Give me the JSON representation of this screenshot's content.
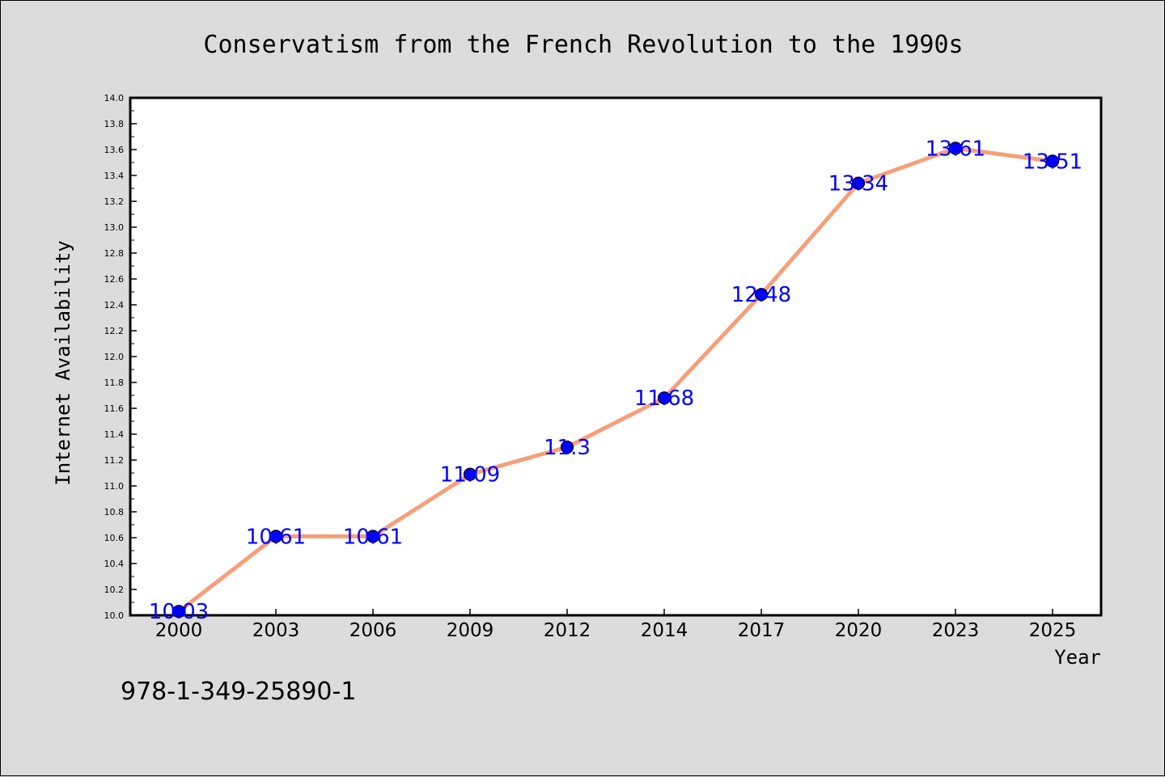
{
  "chart_data": {
    "type": "line",
    "title": "Conservatism from the French Revolution to the 1990s",
    "xlabel": "Year",
    "ylabel": "Internet Availability",
    "categories": [
      "2000",
      "2003",
      "2006",
      "2009",
      "2012",
      "2014",
      "2017",
      "2020",
      "2023",
      "2025"
    ],
    "values": [
      10.03,
      10.61,
      10.61,
      11.09,
      11.3,
      11.68,
      12.48,
      13.34,
      13.61,
      13.51
    ],
    "data_labels": [
      "10.03",
      "10.61",
      "10.61",
      "11.09",
      "11.3",
      "11.68",
      "12.48",
      "13.34",
      "13.61",
      "13.51"
    ],
    "ylim": [
      10.0,
      14.0
    ],
    "yticks": [
      "10.0",
      "10.2",
      "10.4",
      "10.6",
      "10.8",
      "11.0",
      "11.2",
      "11.4",
      "11.6",
      "11.8",
      "12.0",
      "12.2",
      "12.4",
      "12.6",
      "12.8",
      "13.0",
      "13.2",
      "13.4",
      "13.6",
      "13.8",
      "14.0"
    ],
    "grid": false,
    "legend": "none",
    "line_color": "#f5a07a",
    "marker_color": "#0000ff",
    "label_color": "#0000ff"
  },
  "footer": {
    "isbn": "978-1-349-25890-1"
  }
}
